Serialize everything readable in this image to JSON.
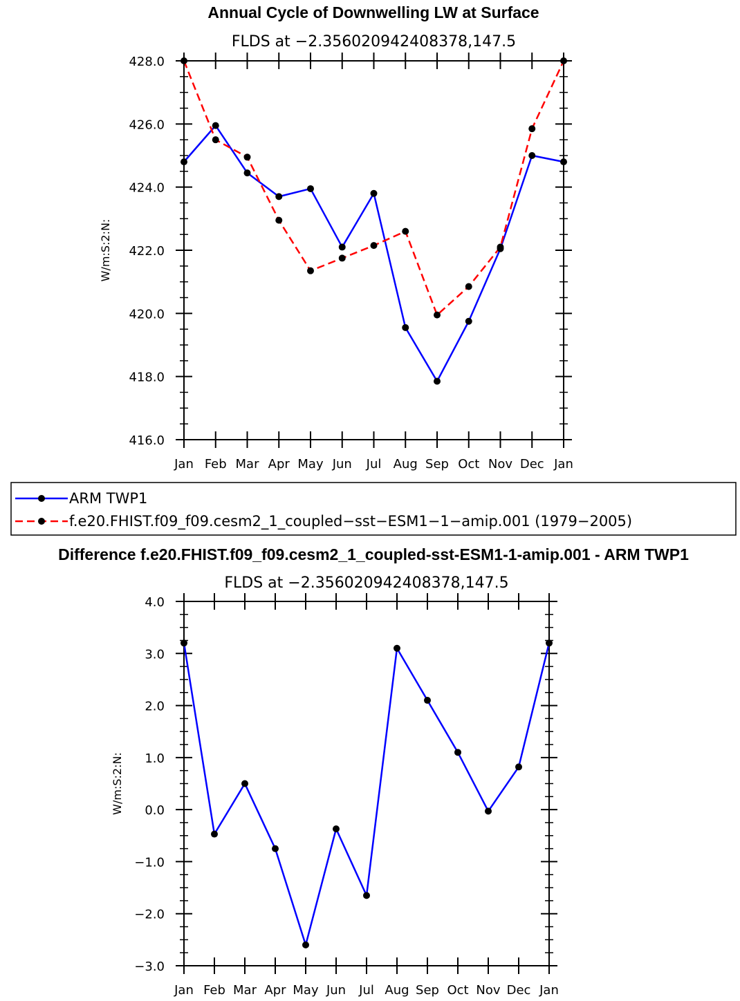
{
  "chart_data": [
    {
      "type": "line",
      "title": "Annual Cycle of Downwelling LW at Surface",
      "subtitle": "FLDS at −2.356020942408378,147.5",
      "ylabel": "W/m:S:2:N:",
      "xlabel": "",
      "categories": [
        "Jan",
        "Feb",
        "Mar",
        "Apr",
        "May",
        "Jun",
        "Jul",
        "Aug",
        "Sep",
        "Oct",
        "Nov",
        "Dec",
        "Jan"
      ],
      "ylim": [
        416.0,
        428.0
      ],
      "ytick_labels": [
        "416.0",
        "418.0",
        "420.0",
        "422.0",
        "424.0",
        "426.0",
        "428.0"
      ],
      "series": [
        {
          "name": "ARM TWP1",
          "color": "#0000ff",
          "dash": "solid",
          "values": [
            424.8,
            425.95,
            424.45,
            423.7,
            423.95,
            422.1,
            423.8,
            419.55,
            417.85,
            419.75,
            422.05,
            425.0,
            424.8
          ]
        },
        {
          "name": "f.e20.FHIST.f09_f09.cesm2_1_coupled−sst−ESM1−1−amip.001 (1979−2005)",
          "color": "#ff0000",
          "dash": "dashed",
          "values": [
            428.0,
            425.5,
            424.95,
            422.95,
            421.35,
            421.75,
            422.15,
            422.6,
            419.95,
            420.85,
            422.1,
            425.85,
            428.0
          ]
        }
      ],
      "legend": "below"
    },
    {
      "type": "line",
      "title": "Difference f.e20.FHIST.f09_f09.cesm2_1_coupled-sst-ESM1-1-amip.001 - ARM TWP1",
      "subtitle": "FLDS at −2.356020942408378,147.5",
      "ylabel": "W/m:S:2:N:",
      "xlabel": "",
      "categories": [
        "Jan",
        "Feb",
        "Mar",
        "Apr",
        "May",
        "Jun",
        "Jul",
        "Aug",
        "Sep",
        "Oct",
        "Nov",
        "Dec",
        "Jan"
      ],
      "ylim": [
        -3.0,
        4.0
      ],
      "ytick_labels": [
        "−3.0",
        "−2.0",
        "−1.0",
        "0.0",
        "1.0",
        "2.0",
        "3.0",
        "4.0"
      ],
      "series": [
        {
          "name": "Difference",
          "color": "#0000ff",
          "dash": "solid",
          "values": [
            3.2,
            -0.47,
            0.5,
            -0.75,
            -2.6,
            -0.37,
            -1.65,
            3.1,
            2.1,
            1.1,
            -0.03,
            0.82,
            3.2
          ]
        }
      ]
    }
  ]
}
